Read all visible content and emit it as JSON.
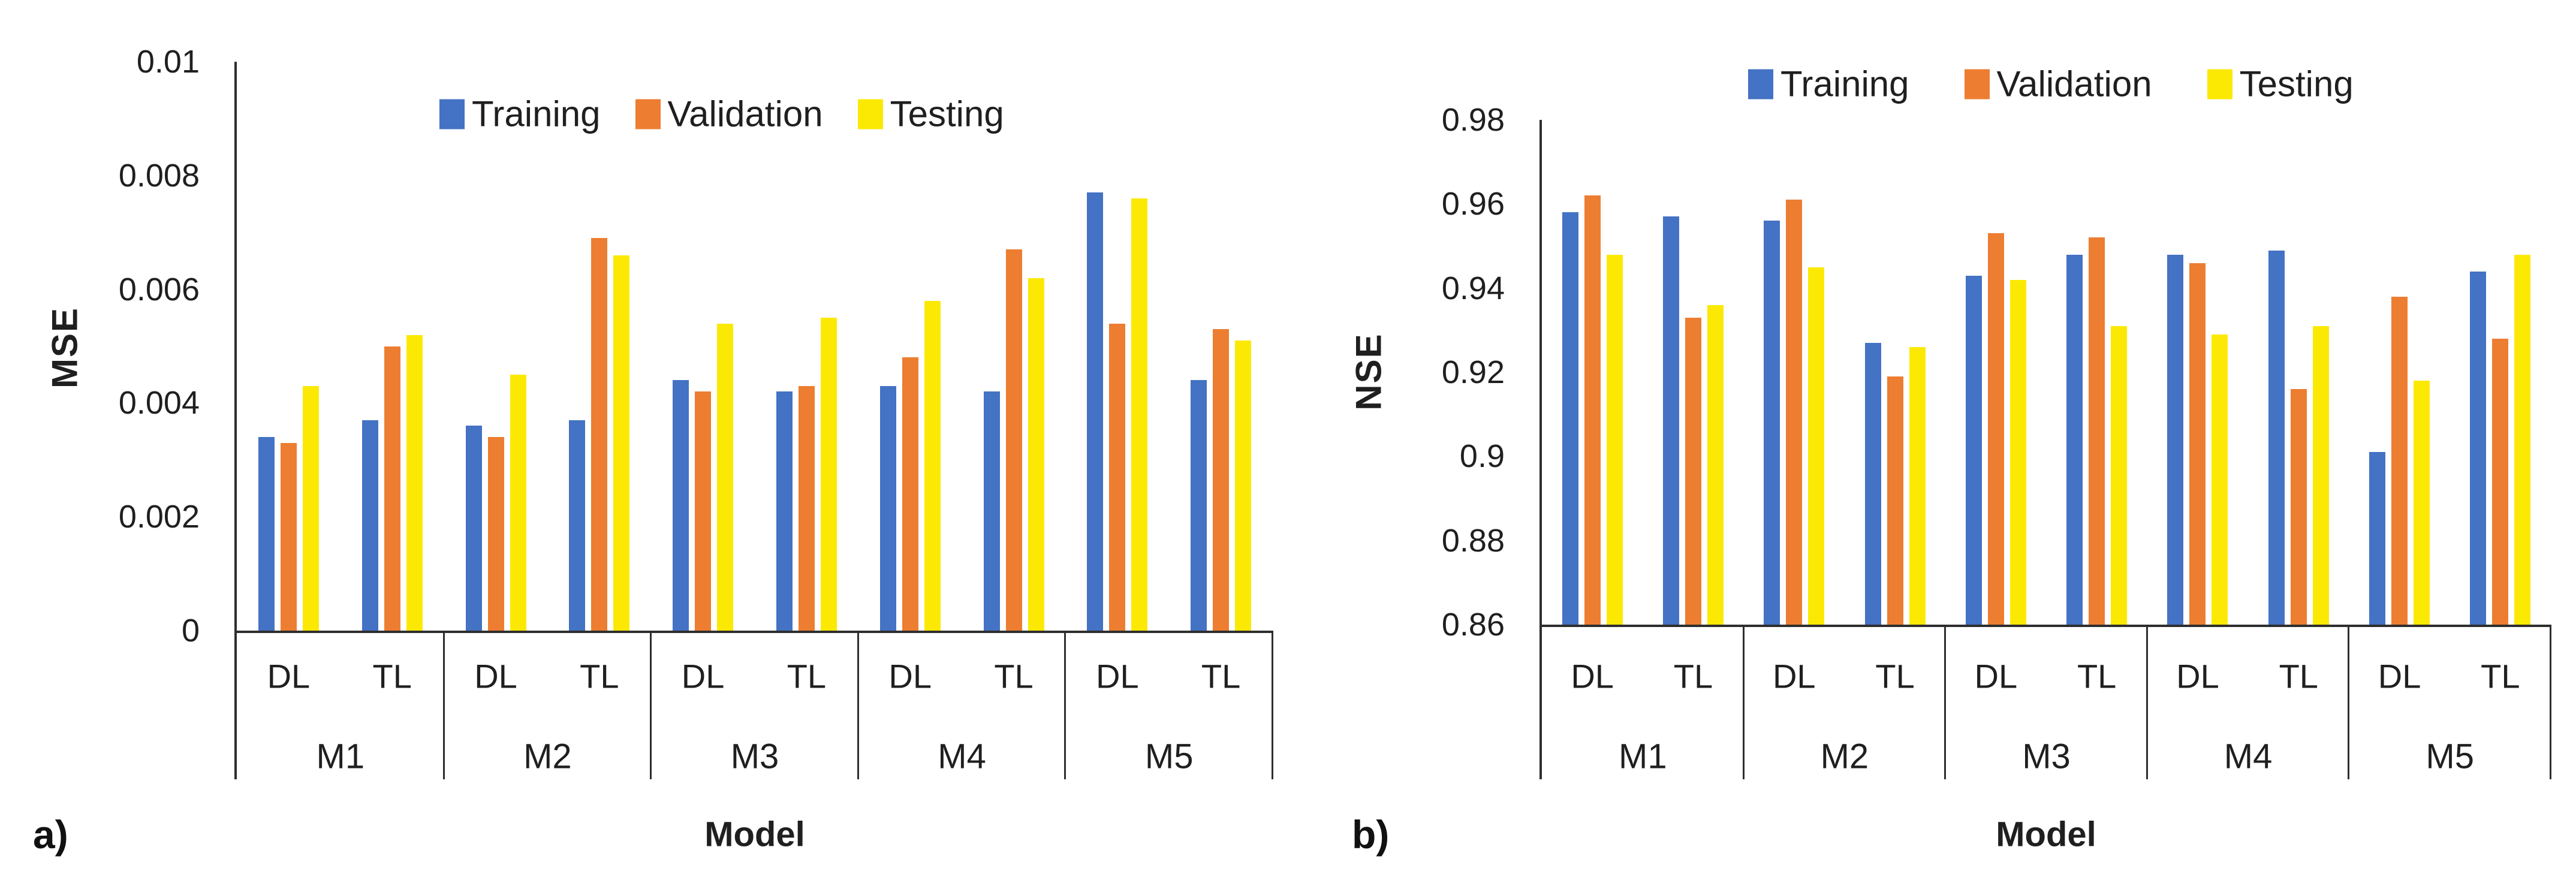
{
  "figure": {
    "background": "#ffffff",
    "text_color": "#1f1f1f",
    "axis_color": "#2e2e2e"
  },
  "chart_data": [
    {
      "type": "bar",
      "panel_label": "a)",
      "title": "",
      "xlabel": "Model",
      "ylabel": "MSE",
      "categories": [
        "M1",
        "M2",
        "M3",
        "M4",
        "M5"
      ],
      "subcategories": [
        "DL",
        "TL"
      ],
      "ylim": [
        0,
        0.01
      ],
      "ytick_labels": [
        "0",
        "0.002",
        "0.004",
        "0.006",
        "0.008",
        "0.01"
      ],
      "grid": false,
      "legend_position": "top",
      "series": [
        {
          "name": "Training",
          "color": "#4472C4",
          "values": [
            0.0034,
            0.0037,
            0.0036,
            0.0037,
            0.0044,
            0.0042,
            0.0043,
            0.0042,
            0.0077,
            0.0044
          ]
        },
        {
          "name": "Validation",
          "color": "#ED7D31",
          "values": [
            0.0033,
            0.005,
            0.0034,
            0.0069,
            0.0042,
            0.0043,
            0.0048,
            0.0067,
            0.0054,
            0.0053
          ]
        },
        {
          "name": "Testing",
          "color": "#FCE903",
          "values": [
            0.0043,
            0.0052,
            0.0045,
            0.0066,
            0.0054,
            0.0055,
            0.0058,
            0.0062,
            0.0076,
            0.0051
          ]
        }
      ]
    },
    {
      "type": "bar",
      "panel_label": "b)",
      "title": "",
      "xlabel": "Model",
      "ylabel": "NSE",
      "categories": [
        "M1",
        "M2",
        "M3",
        "M4",
        "M5"
      ],
      "subcategories": [
        "DL",
        "TL"
      ],
      "ylim": [
        0.86,
        0.98
      ],
      "ytick_labels": [
        "0.86",
        "0.88",
        "0.9",
        "0.92",
        "0.94",
        "0.96",
        "0.98"
      ],
      "grid": false,
      "legend_position": "top",
      "series": [
        {
          "name": "Training",
          "color": "#4472C4",
          "values": [
            0.958,
            0.957,
            0.956,
            0.927,
            0.943,
            0.948,
            0.948,
            0.949,
            0.901,
            0.944
          ]
        },
        {
          "name": "Validation",
          "color": "#ED7D31",
          "values": [
            0.962,
            0.933,
            0.961,
            0.919,
            0.953,
            0.952,
            0.946,
            0.916,
            0.938,
            0.928
          ]
        },
        {
          "name": "Testing",
          "color": "#FCE903",
          "values": [
            0.948,
            0.936,
            0.945,
            0.926,
            0.942,
            0.931,
            0.929,
            0.931,
            0.918,
            0.948
          ]
        }
      ]
    }
  ]
}
